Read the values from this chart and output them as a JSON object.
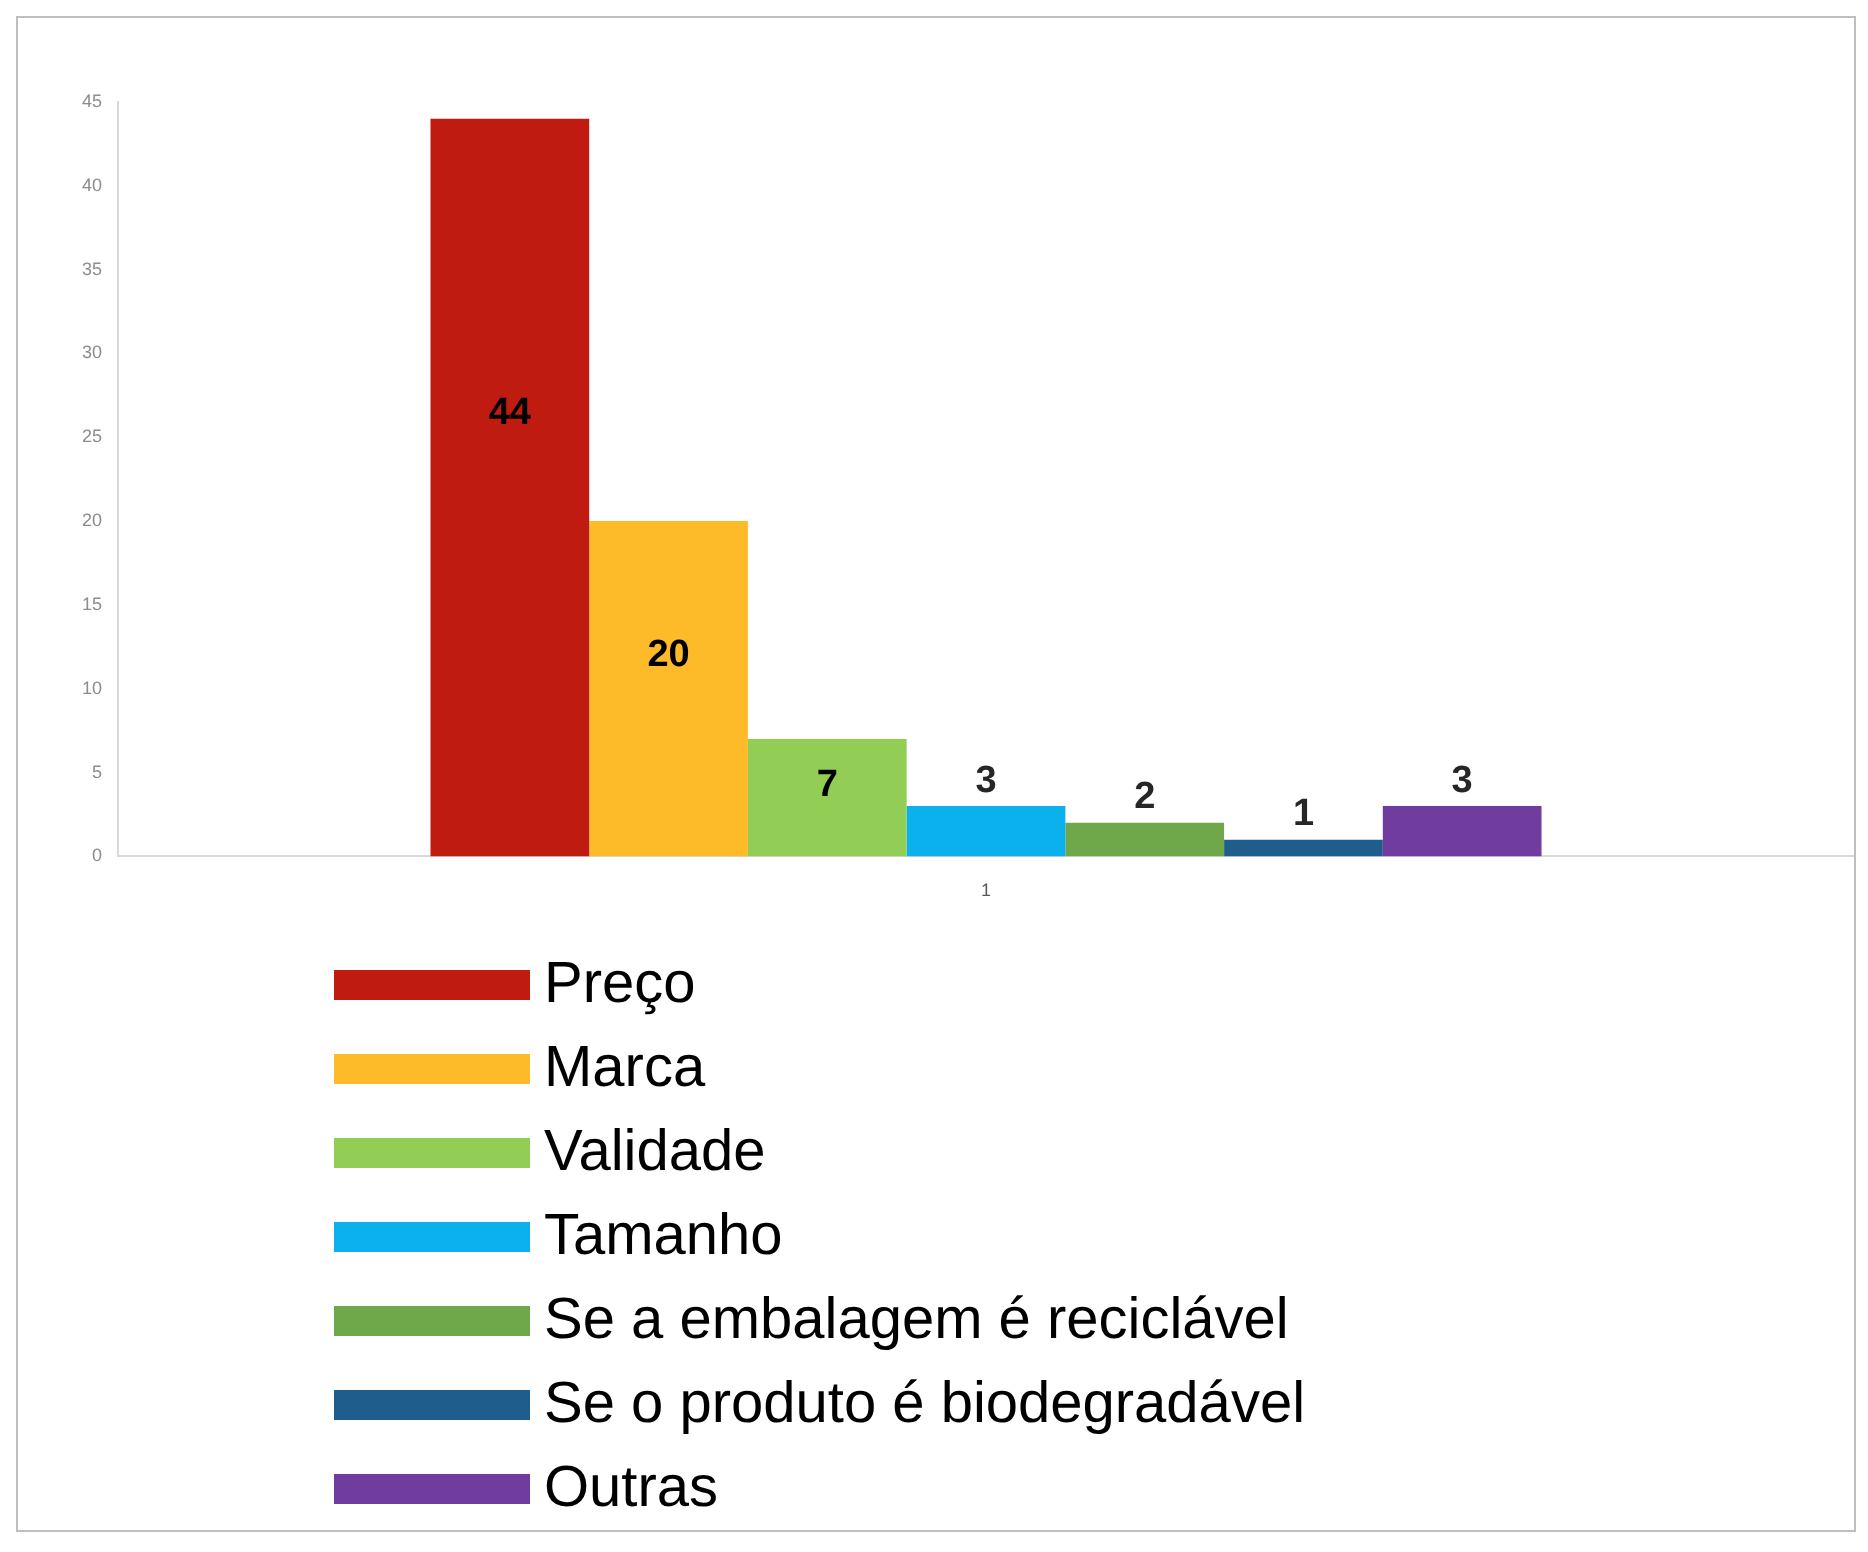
{
  "chart_data": {
    "type": "bar",
    "categories": [
      "1"
    ],
    "series": [
      {
        "name": "Preço",
        "color": "#bf1b10",
        "values": [
          44
        ]
      },
      {
        "name": "Marca",
        "color": "#fdbb2a",
        "values": [
          20
        ]
      },
      {
        "name": "Validade",
        "color": "#92cd55",
        "values": [
          7
        ]
      },
      {
        "name": "Tamanho",
        "color": "#0bb1ed",
        "values": [
          3
        ]
      },
      {
        "name": "Se a embalagem é reciclável",
        "color": "#6fa84a",
        "values": [
          2
        ]
      },
      {
        "name": "Se o produto é biodegradável",
        "color": "#1f5d8c",
        "values": [
          1
        ]
      },
      {
        "name": "Outras",
        "color": "#703c9e",
        "values": [
          3
        ]
      }
    ],
    "ylim": [
      0,
      45
    ],
    "yticks": [
      0,
      5,
      10,
      15,
      20,
      25,
      30,
      35,
      40,
      45
    ],
    "grid": false,
    "legend": "bottom",
    "data_labels": true
  }
}
